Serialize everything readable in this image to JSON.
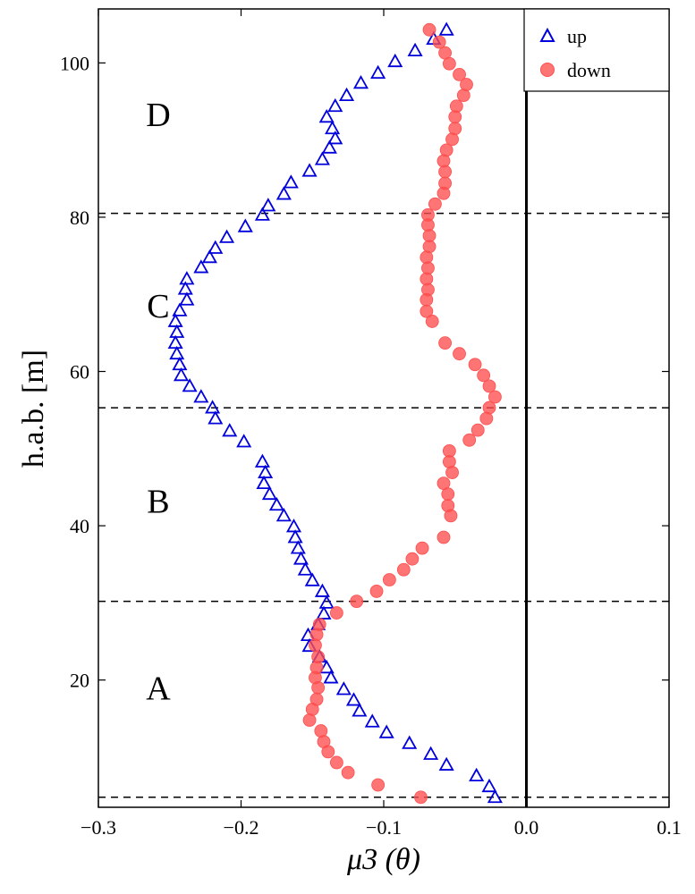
{
  "chart_data": {
    "type": "scatter",
    "xlabel": "μ3 (θ)",
    "ylabel": "h.a.b. [m]",
    "xlim": [
      -0.3,
      0.1
    ],
    "ylim": [
      3.5,
      107
    ],
    "xticks": [
      -0.3,
      -0.2,
      -0.1,
      0.0,
      0.1
    ],
    "xtick_labels": [
      "−0.3",
      "−0.2",
      "−0.1",
      "0.0",
      "0.1"
    ],
    "yticks": [
      20,
      40,
      60,
      80,
      100
    ],
    "ytick_labels": [
      "20",
      "40",
      "60",
      "80",
      "100"
    ],
    "grid": false,
    "legend_position": "top-right",
    "hlines": [
      4.8,
      30.2,
      55.3,
      80.5
    ],
    "vline": 0.0,
    "region_labels": [
      {
        "text": "A",
        "x": -0.258,
        "y": 19
      },
      {
        "text": "B",
        "x": -0.258,
        "y": 43.2
      },
      {
        "text": "C",
        "x": -0.258,
        "y": 68.5
      },
      {
        "text": "D",
        "x": -0.258,
        "y": 93.3
      }
    ],
    "series": [
      {
        "name": "up",
        "marker": "triangle",
        "color": "#0000dd",
        "points": [
          [
            -0.022,
            4.8
          ],
          [
            -0.026,
            6.2
          ],
          [
            -0.035,
            7.6
          ],
          [
            -0.056,
            9.0
          ],
          [
            -0.067,
            10.4
          ],
          [
            -0.082,
            11.8
          ],
          [
            -0.098,
            13.2
          ],
          [
            -0.108,
            14.6
          ],
          [
            -0.117,
            16.0
          ],
          [
            -0.121,
            17.4
          ],
          [
            -0.128,
            18.8
          ],
          [
            -0.137,
            20.3
          ],
          [
            -0.14,
            21.6
          ],
          [
            -0.145,
            23.0
          ],
          [
            -0.152,
            24.4
          ],
          [
            -0.153,
            25.8
          ],
          [
            -0.146,
            27.2
          ],
          [
            -0.142,
            28.6
          ],
          [
            -0.14,
            30.0
          ],
          [
            -0.143,
            31.5
          ],
          [
            -0.15,
            32.9
          ],
          [
            -0.155,
            34.3
          ],
          [
            -0.158,
            35.7
          ],
          [
            -0.16,
            37.1
          ],
          [
            -0.162,
            38.5
          ],
          [
            -0.163,
            39.9
          ],
          [
            -0.17,
            41.3
          ],
          [
            -0.175,
            42.7
          ],
          [
            -0.18,
            44.1
          ],
          [
            -0.184,
            45.5
          ],
          [
            -0.183,
            46.9
          ],
          [
            -0.185,
            48.3
          ],
          [
            -0.198,
            50.9
          ],
          [
            -0.208,
            52.3
          ],
          [
            -0.218,
            53.9
          ],
          [
            -0.22,
            55.3
          ],
          [
            -0.228,
            56.7
          ],
          [
            -0.236,
            58.1
          ],
          [
            -0.242,
            59.5
          ],
          [
            -0.243,
            60.9
          ],
          [
            -0.245,
            62.3
          ],
          [
            -0.246,
            63.7
          ],
          [
            -0.245,
            65.1
          ],
          [
            -0.246,
            66.5
          ],
          [
            -0.243,
            67.9
          ],
          [
            -0.238,
            69.3
          ],
          [
            -0.239,
            70.7
          ],
          [
            -0.238,
            72.0
          ],
          [
            -0.228,
            73.5
          ],
          [
            -0.222,
            74.8
          ],
          [
            -0.218,
            76.0
          ],
          [
            -0.21,
            77.4
          ],
          [
            -0.197,
            78.8
          ],
          [
            -0.185,
            80.3
          ],
          [
            -0.181,
            81.5
          ],
          [
            -0.17,
            83.0
          ],
          [
            -0.165,
            84.5
          ],
          [
            -0.152,
            86.0
          ],
          [
            -0.143,
            87.5
          ],
          [
            -0.138,
            89.0
          ],
          [
            -0.134,
            90.2
          ],
          [
            -0.136,
            91.5
          ],
          [
            -0.14,
            93.0
          ],
          [
            -0.134,
            94.4
          ],
          [
            -0.126,
            95.8
          ],
          [
            -0.116,
            97.4
          ],
          [
            -0.104,
            98.7
          ],
          [
            -0.092,
            100.2
          ],
          [
            -0.078,
            101.6
          ],
          [
            -0.065,
            103.1
          ],
          [
            -0.056,
            104.3
          ]
        ]
      },
      {
        "name": "down",
        "marker": "circle",
        "color": "#ff4d4d",
        "points": [
          [
            -0.074,
            4.8
          ],
          [
            -0.104,
            6.4
          ],
          [
            -0.125,
            8.0
          ],
          [
            -0.133,
            9.3
          ],
          [
            -0.139,
            10.7
          ],
          [
            -0.142,
            12.0
          ],
          [
            -0.144,
            13.4
          ],
          [
            -0.152,
            14.8
          ],
          [
            -0.15,
            16.2
          ],
          [
            -0.147,
            17.5
          ],
          [
            -0.146,
            19.0
          ],
          [
            -0.148,
            20.3
          ],
          [
            -0.147,
            21.6
          ],
          [
            -0.146,
            23.0
          ],
          [
            -0.148,
            24.5
          ],
          [
            -0.147,
            25.9
          ],
          [
            -0.145,
            27.2
          ],
          [
            -0.133,
            28.7
          ],
          [
            -0.119,
            30.2
          ],
          [
            -0.105,
            31.5
          ],
          [
            -0.096,
            33.0
          ],
          [
            -0.086,
            34.3
          ],
          [
            -0.08,
            35.7
          ],
          [
            -0.073,
            37.1
          ],
          [
            -0.058,
            38.5
          ],
          [
            -0.053,
            41.3
          ],
          [
            -0.055,
            42.6
          ],
          [
            -0.055,
            44.1
          ],
          [
            -0.058,
            45.5
          ],
          [
            -0.052,
            46.9
          ],
          [
            -0.054,
            48.3
          ],
          [
            -0.054,
            49.7
          ],
          [
            -0.04,
            51.1
          ],
          [
            -0.034,
            52.4
          ],
          [
            -0.028,
            53.9
          ],
          [
            -0.026,
            55.3
          ],
          [
            -0.022,
            56.7
          ],
          [
            -0.026,
            58.1
          ],
          [
            -0.03,
            59.5
          ],
          [
            -0.036,
            60.9
          ],
          [
            -0.047,
            62.3
          ],
          [
            -0.057,
            63.7
          ],
          [
            -0.066,
            66.5
          ],
          [
            -0.07,
            67.8
          ],
          [
            -0.07,
            69.3
          ],
          [
            -0.069,
            70.6
          ],
          [
            -0.07,
            72.0
          ],
          [
            -0.069,
            73.4
          ],
          [
            -0.07,
            74.8
          ],
          [
            -0.068,
            76.2
          ],
          [
            -0.068,
            77.6
          ],
          [
            -0.069,
            79.0
          ],
          [
            -0.069,
            80.3
          ],
          [
            -0.064,
            81.7
          ],
          [
            -0.058,
            83.1
          ],
          [
            -0.057,
            84.4
          ],
          [
            -0.057,
            85.9
          ],
          [
            -0.058,
            87.3
          ],
          [
            -0.056,
            88.7
          ],
          [
            -0.052,
            90.1
          ],
          [
            -0.05,
            91.5
          ],
          [
            -0.05,
            93.0
          ],
          [
            -0.049,
            94.4
          ],
          [
            -0.044,
            95.8
          ],
          [
            -0.042,
            97.2
          ],
          [
            -0.047,
            98.5
          ],
          [
            -0.054,
            99.9
          ],
          [
            -0.057,
            101.3
          ],
          [
            -0.061,
            102.7
          ],
          [
            -0.068,
            104.3
          ]
        ]
      }
    ]
  }
}
